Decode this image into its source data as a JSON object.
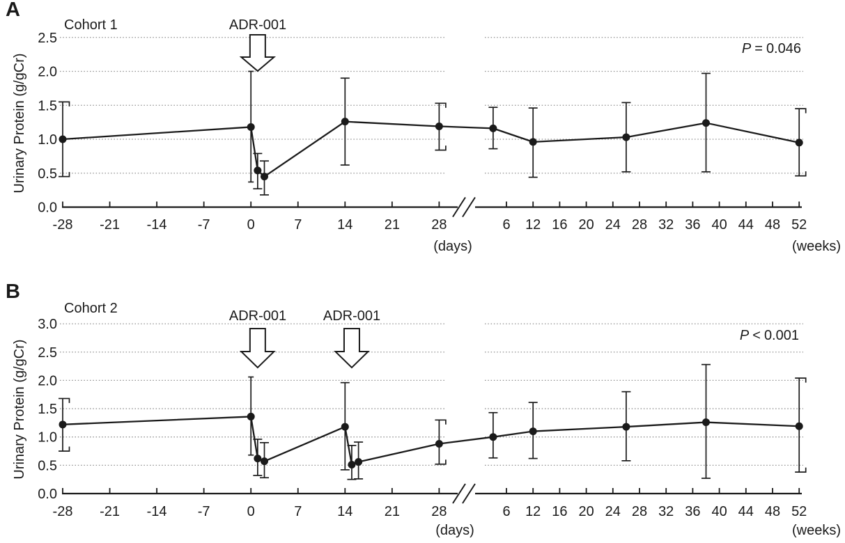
{
  "figure": {
    "background": "#ffffff",
    "line_color": "#1a1a1a",
    "grid_color": "#8e8e8e"
  },
  "chart_data": [
    {
      "type": "line",
      "panel_label": "A",
      "title": "Cohort 1",
      "annotation": {
        "symbol": "P",
        "relation": "=",
        "value": "0.046"
      },
      "ylabel": "Urinary Protein (g/gCr)",
      "ylim": [
        0.0,
        2.5
      ],
      "yticks": [
        "0.0",
        "0.5",
        "1.0",
        "1.5",
        "2.0",
        "2.5"
      ],
      "grid": "dotted-horizontal",
      "legend": "none",
      "x_axis": {
        "days_ticks": [
          -28,
          -21,
          -14,
          -7,
          0,
          7,
          14,
          21,
          28
        ],
        "weeks_ticks": [
          6,
          12,
          16,
          20,
          24,
          28,
          32,
          36,
          40,
          44,
          48,
          52
        ],
        "days_unit_label": "(days)",
        "weeks_unit_label": "(weeks)",
        "axis_break": true
      },
      "treatment_arrows": [
        {
          "label": "ADR-001",
          "at_day": 1
        }
      ],
      "series": [
        {
          "name": "Urinary protein mean with error bars",
          "points": [
            {
              "x": -28,
              "unit": "days",
              "y": 1.0,
              "err_lo": 0.45,
              "err_hi": 1.55,
              "cap": "bracket"
            },
            {
              "x": 0,
              "unit": "days",
              "y": 1.18,
              "err_lo": 0.37,
              "err_hi": 2.0,
              "cap": "small"
            },
            {
              "x": 1,
              "unit": "days",
              "y": 0.54,
              "err_lo": 0.27,
              "err_hi": 0.79,
              "cap": "T"
            },
            {
              "x": 2,
              "unit": "days",
              "y": 0.45,
              "err_lo": 0.18,
              "err_hi": 0.68,
              "cap": "T"
            },
            {
              "x": 14,
              "unit": "days",
              "y": 1.26,
              "err_lo": 0.62,
              "err_hi": 1.9,
              "cap": "T"
            },
            {
              "x": 28,
              "unit": "days",
              "y": 1.19,
              "err_lo": 0.84,
              "err_hi": 1.53,
              "cap": "bracket"
            },
            {
              "x": 4,
              "unit": "weeks",
              "y": 1.16,
              "err_lo": 0.86,
              "err_hi": 1.47,
              "cap": "T"
            },
            {
              "x": 12,
              "unit": "weeks",
              "y": 0.96,
              "err_lo": 0.44,
              "err_hi": 1.46,
              "cap": "T"
            },
            {
              "x": 26,
              "unit": "weeks",
              "y": 1.03,
              "err_lo": 0.52,
              "err_hi": 1.54,
              "cap": "T"
            },
            {
              "x": 38,
              "unit": "weeks",
              "y": 1.24,
              "err_lo": 0.52,
              "err_hi": 1.97,
              "cap": "T"
            },
            {
              "x": 52,
              "unit": "weeks",
              "y": 0.95,
              "err_lo": 0.46,
              "err_hi": 1.45,
              "cap": "bracket"
            }
          ]
        }
      ]
    },
    {
      "type": "line",
      "panel_label": "B",
      "title": "Cohort 2",
      "annotation": {
        "symbol": "P",
        "relation": "<",
        "value": "0.001"
      },
      "ylabel": "Urinary Protein (g/gCr)",
      "ylim": [
        0.0,
        3.0
      ],
      "yticks": [
        "0.0",
        "0.5",
        "1.0",
        "1.5",
        "2.0",
        "2.5",
        "3.0"
      ],
      "grid": "dotted-horizontal",
      "legend": "none",
      "x_axis": {
        "days_ticks": [
          -28,
          -21,
          -14,
          -7,
          0,
          7,
          14,
          21,
          28
        ],
        "weeks_ticks": [
          6,
          12,
          16,
          20,
          24,
          28,
          32,
          36,
          40,
          44,
          48,
          52
        ],
        "days_unit_label": "(days)",
        "weeks_unit_label": "(weeks)",
        "axis_break": true
      },
      "treatment_arrows": [
        {
          "label": "ADR-001",
          "at_day": 1
        },
        {
          "label": "ADR-001",
          "at_day": 15
        }
      ],
      "series": [
        {
          "name": "Urinary protein mean with error bars",
          "points": [
            {
              "x": -28,
              "unit": "days",
              "y": 1.22,
              "err_lo": 0.75,
              "err_hi": 1.68,
              "cap": "bracket"
            },
            {
              "x": 0,
              "unit": "days",
              "y": 1.36,
              "err_lo": 0.68,
              "err_hi": 2.06,
              "cap": "small"
            },
            {
              "x": 1,
              "unit": "days",
              "y": 0.62,
              "err_lo": 0.32,
              "err_hi": 0.96,
              "cap": "T"
            },
            {
              "x": 2,
              "unit": "days",
              "y": 0.57,
              "err_lo": 0.28,
              "err_hi": 0.9,
              "cap": "T"
            },
            {
              "x": 14,
              "unit": "days",
              "y": 1.18,
              "err_lo": 0.42,
              "err_hi": 1.96,
              "cap": "T"
            },
            {
              "x": 15,
              "unit": "days",
              "y": 0.51,
              "err_lo": 0.25,
              "err_hi": 0.85,
              "cap": "T"
            },
            {
              "x": 16,
              "unit": "days",
              "y": 0.56,
              "err_lo": 0.26,
              "err_hi": 0.91,
              "cap": "T"
            },
            {
              "x": 28,
              "unit": "days",
              "y": 0.88,
              "err_lo": 0.52,
              "err_hi": 1.3,
              "cap": "bracket"
            },
            {
              "x": 4,
              "unit": "weeks",
              "y": 1.0,
              "err_lo": 0.63,
              "err_hi": 1.43,
              "cap": "T"
            },
            {
              "x": 12,
              "unit": "weeks",
              "y": 1.1,
              "err_lo": 0.62,
              "err_hi": 1.61,
              "cap": "T"
            },
            {
              "x": 26,
              "unit": "weeks",
              "y": 1.18,
              "err_lo": 0.58,
              "err_hi": 1.8,
              "cap": "T"
            },
            {
              "x": 38,
              "unit": "weeks",
              "y": 1.26,
              "err_lo": 0.27,
              "err_hi": 2.28,
              "cap": "T"
            },
            {
              "x": 52,
              "unit": "weeks",
              "y": 1.19,
              "err_lo": 0.38,
              "err_hi": 2.04,
              "cap": "bracket"
            }
          ]
        }
      ]
    }
  ]
}
